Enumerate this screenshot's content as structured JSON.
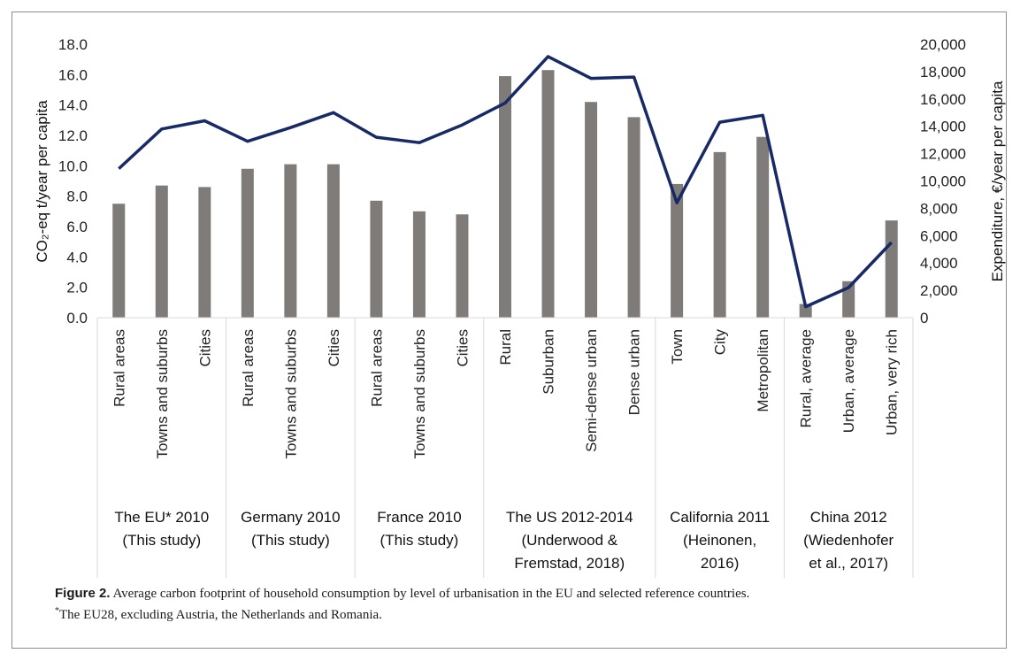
{
  "chart_data": {
    "type": "bar+line",
    "ylabel_left": "CO₂-eq t/year per capita",
    "ylabel_right": "Expenditure, €/year per capita",
    "ylim_left": [
      0,
      18
    ],
    "ylim_right": [
      0,
      20000
    ],
    "left_ticks": [
      "0.0",
      "2.0",
      "4.0",
      "6.0",
      "8.0",
      "10.0",
      "12.0",
      "14.0",
      "16.0",
      "18.0"
    ],
    "right_ticks": [
      "0",
      "2,000",
      "4,000",
      "6,000",
      "8,000",
      "10,000",
      "12,000",
      "14,000",
      "16,000",
      "18,000",
      "20,000"
    ],
    "categories": [
      "Rural areas",
      "Towns and suburbs",
      "Cities",
      "Rural areas",
      "Towns and suburbs",
      "Cities",
      "Rural areas",
      "Towns and suburbs",
      "Cities",
      "Rural",
      "Suburban",
      "Semi-dense urban",
      "Dense urban",
      "Town",
      "City",
      "Metropolitan",
      "Rural, average",
      "Urban, average",
      "Urban, very rich"
    ],
    "groups": [
      {
        "lines": [
          "The EU* 2010",
          "(This study)"
        ],
        "count": 3
      },
      {
        "lines": [
          "Germany 2010",
          "(This study)"
        ],
        "count": 3
      },
      {
        "lines": [
          "France 2010",
          "(This study)"
        ],
        "count": 3
      },
      {
        "lines": [
          "The US 2012-2014",
          "(Underwood &",
          "Fremstad, 2018)"
        ],
        "count": 4
      },
      {
        "lines": [
          "California 2011",
          "(Heinonen,",
          "2016)"
        ],
        "count": 3
      },
      {
        "lines": [
          "China 2012",
          "(Wiedenhofer",
          "et al., 2017)"
        ],
        "count": 3
      }
    ],
    "series": [
      {
        "type": "bar",
        "axis": "left",
        "color": "#7f7b79",
        "values": [
          7.5,
          8.7,
          8.6,
          9.8,
          10.1,
          10.1,
          7.7,
          7.0,
          6.8,
          15.9,
          16.3,
          14.2,
          13.2,
          8.8,
          10.9,
          11.9,
          0.9,
          2.4,
          6.4
        ]
      },
      {
        "type": "line",
        "axis": "right",
        "color": "#172a66",
        "values": [
          10900,
          13800,
          14400,
          12900,
          13900,
          15000,
          13200,
          12800,
          14100,
          15700,
          19100,
          17500,
          17600,
          8400,
          14300,
          14800,
          800,
          2200,
          5500
        ]
      }
    ]
  },
  "caption": {
    "label": "Figure 2.",
    "text": " Average carbon footprint of household consumption by level of urbanisation in the EU and selected reference countries.",
    "footnote_mark": "*",
    "footnote": "The EU28, excluding Austria, the Netherlands and Romania."
  }
}
